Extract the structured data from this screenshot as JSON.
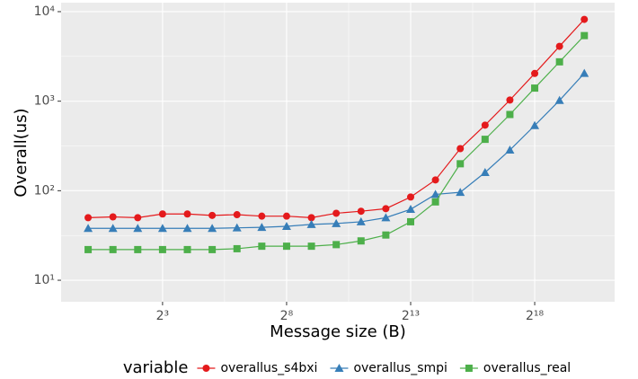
{
  "chart_data": {
    "type": "line",
    "x_label": "Message size (B)",
    "y_label": "Overall(us)",
    "legend_title": "variable",
    "legend_position": "bottom",
    "xlog": true,
    "ylog": true,
    "grid": true,
    "xlim": [
      0.47,
      2446000
    ],
    "ylim": [
      5.75,
      12590
    ],
    "xticks": [
      {
        "value": 8,
        "label": "2³"
      },
      {
        "value": 256,
        "label": "2⁸"
      },
      {
        "value": 8192,
        "label": "2¹³"
      },
      {
        "value": 262144,
        "label": "2¹⁸"
      }
    ],
    "yticks": [
      {
        "value": 10,
        "label": "10¹"
      },
      {
        "value": 100,
        "label": "10²"
      },
      {
        "value": 1000,
        "label": "10³"
      },
      {
        "value": 10000,
        "label": "10⁴"
      }
    ],
    "x": [
      1,
      2,
      4,
      8,
      16,
      32,
      64,
      128,
      256,
      512,
      1024,
      2048,
      4096,
      8192,
      16384,
      32768,
      65536,
      131072,
      262144,
      524288,
      1048576
    ],
    "series": [
      {
        "name": "overallus_s4bxi",
        "color": "#E41A1C",
        "marker": "circle",
        "values": [
          50,
          51,
          50,
          55,
          55,
          53,
          54,
          52,
          52,
          50,
          56,
          59,
          63,
          85,
          132,
          295,
          540,
          1030,
          2040,
          4100,
          8200
        ]
      },
      {
        "name": "overallus_smpi",
        "color": "#377EB8",
        "marker": "triangle",
        "values": [
          38,
          38,
          38,
          38,
          38,
          38,
          38.5,
          39,
          40,
          42,
          43,
          45,
          50,
          62,
          91,
          96,
          160,
          285,
          535,
          1020,
          2050
        ]
      },
      {
        "name": "overallus_real",
        "color": "#4DAF4A",
        "marker": "square",
        "values": [
          22,
          22,
          22,
          22,
          22,
          22,
          22.5,
          24,
          24,
          24,
          25,
          27.5,
          32,
          45,
          75,
          200,
          375,
          710,
          1400,
          2750,
          5400
        ]
      }
    ]
  }
}
